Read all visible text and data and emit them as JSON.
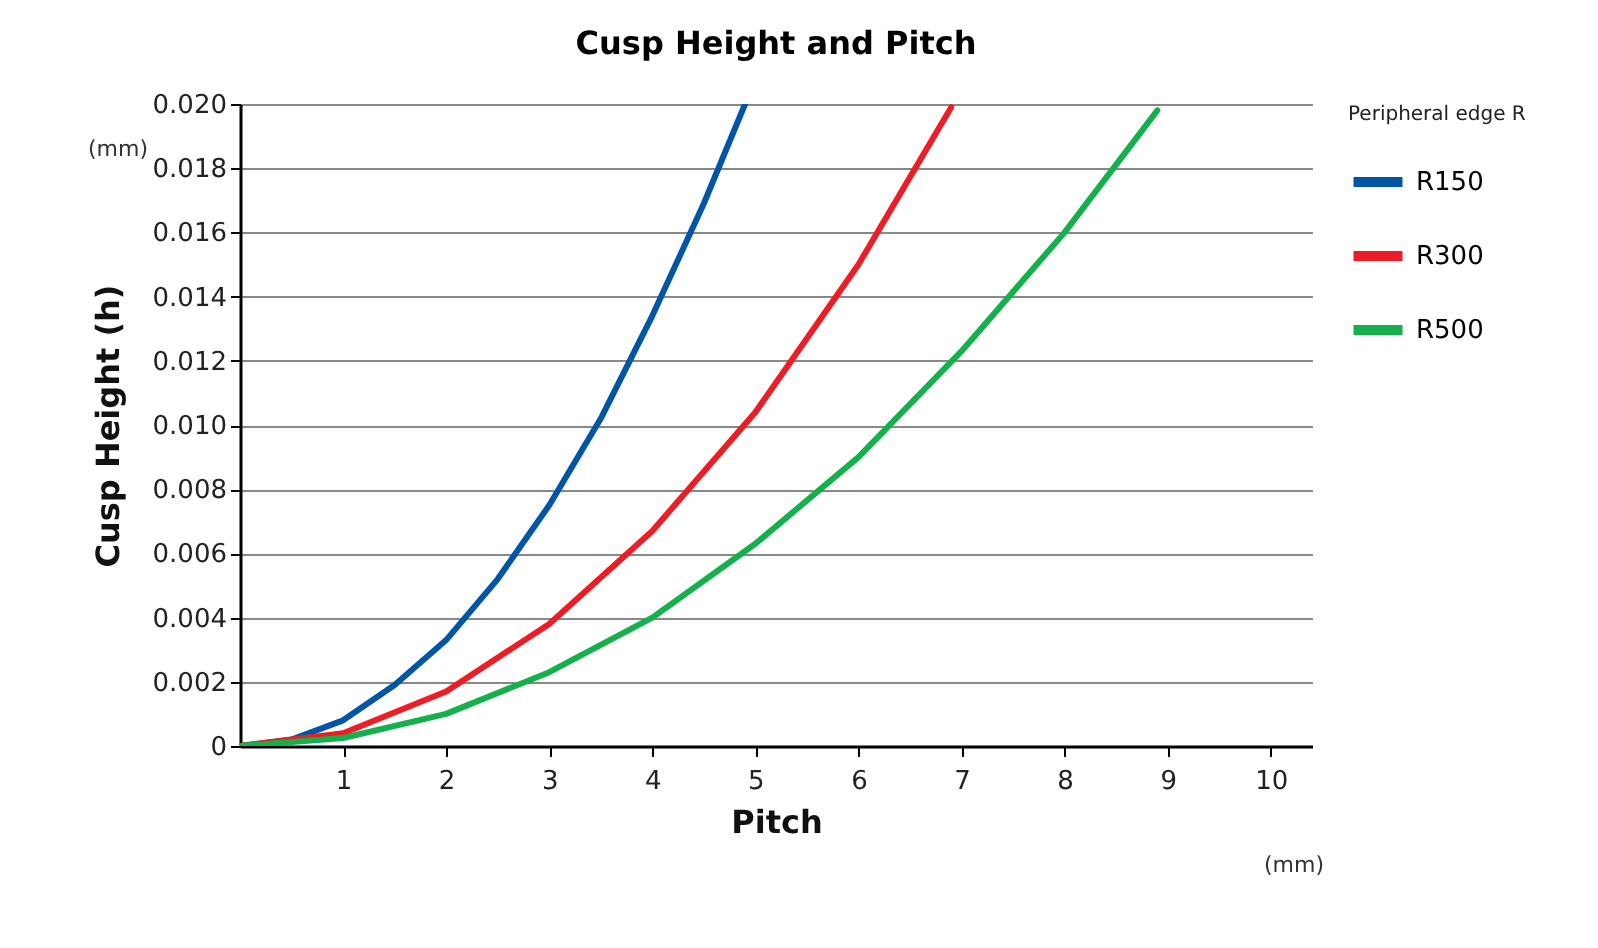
{
  "chart_data": {
    "type": "line",
    "title": "Cusp Height and Pitch",
    "xlabel": "Pitch",
    "ylabel": "Cusp Height (h)",
    "legend_title": "Peripheral edge R",
    "annotations": [
      "(mm)",
      "(mm)"
    ],
    "xlim": [
      0,
      10.4
    ],
    "xticks": [
      1,
      2,
      3,
      4,
      5,
      6,
      7,
      8,
      9,
      10
    ],
    "ylim": [
      0,
      0.02
    ],
    "yticks": [
      0,
      {
        "value": 0.002,
        "label": "0.002"
      },
      {
        "value": 0.004,
        "label": "0.004"
      },
      {
        "value": 0.006,
        "label": "0.006"
      },
      {
        "value": 0.008,
        "label": "0.008"
      },
      {
        "value": 0.01,
        "label": "0.010"
      },
      {
        "value": 0.012,
        "label": "0.012"
      },
      {
        "value": 0.014,
        "label": "0.014"
      },
      {
        "value": 0.016,
        "label": "0.016"
      },
      {
        "value": 0.018,
        "label": "0.018"
      },
      {
        "value": 0.02,
        "label": "0.020"
      }
    ],
    "grid": "y",
    "legend": "right",
    "series": [
      {
        "name": "R150",
        "color": "#0055a5",
        "x": [
          0,
          0.5,
          1,
          1.5,
          2,
          2.5,
          3,
          3.5,
          4,
          4.5,
          4.9
        ],
        "values": [
          0,
          0.0002,
          0.0008,
          0.0019,
          0.0033,
          0.0052,
          0.0075,
          0.0102,
          0.0134,
          0.0169,
          0.02
        ]
      },
      {
        "name": "R300",
        "color": "#ee1c24",
        "x": [
          0,
          1,
          2,
          3,
          4,
          5,
          6,
          6.9
        ],
        "values": [
          0,
          0.0004,
          0.0017,
          0.0038,
          0.0067,
          0.0104,
          0.015,
          0.0199
        ]
      },
      {
        "name": "R500",
        "color": "#13b04b",
        "x": [
          0,
          1,
          2,
          3,
          4,
          5,
          6,
          7,
          8,
          8.9
        ],
        "values": [
          0,
          0.00025,
          0.001,
          0.0023,
          0.004,
          0.0063,
          0.009,
          0.0123,
          0.016,
          0.0198
        ]
      }
    ]
  }
}
